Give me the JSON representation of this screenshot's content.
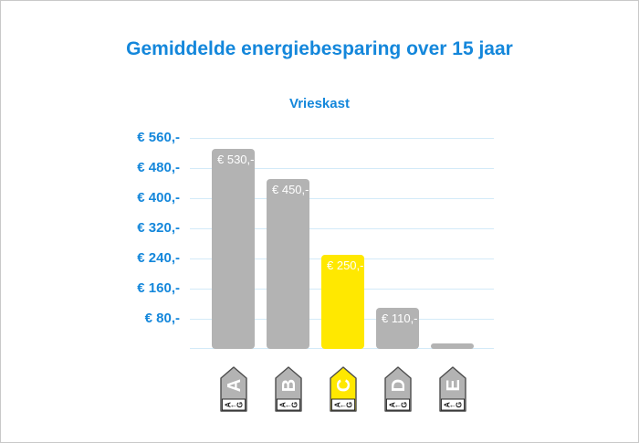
{
  "colors": {
    "accent_blue": "#1487db",
    "gridline": "#d3eaf8",
    "bar_gray": "#b3b3b3",
    "bar_yellow": "#ffe800",
    "bar_label_text": "#ffffff",
    "tag_border": "#4d4d4d",
    "tag_letter": "#ffffff",
    "tag_scale_text": "#1a1a1a",
    "canvas_border": "#c9c9c9"
  },
  "chart_data": {
    "type": "bar",
    "title": "Gemiddelde energiebesparing over 15 jaar",
    "subtitle": "Vrieskast",
    "categories": [
      "A",
      "B",
      "C",
      "D",
      "E"
    ],
    "values": [
      530,
      450,
      250,
      110,
      15
    ],
    "bar_labels": [
      "€ 530,-",
      "€ 450,-",
      "€ 250,-",
      "€ 110,-",
      ""
    ],
    "highlight_category": "C",
    "y_ticks": [
      {
        "value": 560,
        "label": "€ 560,-"
      },
      {
        "value": 480,
        "label": "€ 480,-"
      },
      {
        "value": 400,
        "label": "€ 400,-"
      },
      {
        "value": 320,
        "label": "€ 320,-"
      },
      {
        "value": 240,
        "label": "€ 240,-"
      },
      {
        "value": 160,
        "label": "€ 160,-"
      },
      {
        "value": 80,
        "label": "€ 80,-"
      }
    ],
    "ylim": [
      0,
      560
    ],
    "grid": true,
    "legend": false,
    "x_axis_style": "eu-energy-label-tags",
    "tag_scale_label": "A←G"
  }
}
